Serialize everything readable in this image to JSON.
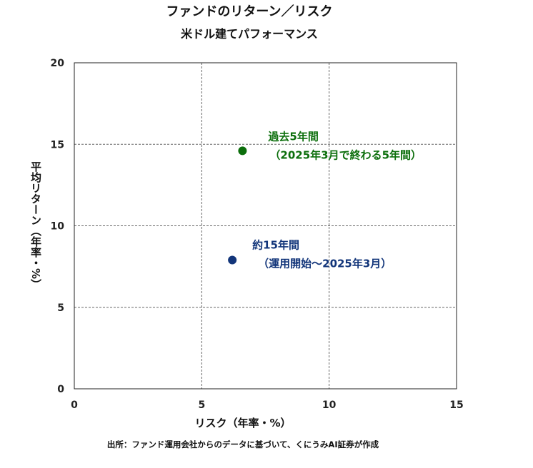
{
  "chart_data": {
    "type": "scatter",
    "title": "ファンドのリターン／リスク",
    "subtitle": "米ドル建てパフォーマンス",
    "xlabel": "リスク（年率・%）",
    "ylabel": "平均リターン（年率・%）",
    "xlim": [
      0,
      15
    ],
    "ylim": [
      0,
      20
    ],
    "xticks": [
      "0",
      "5",
      "10",
      "15"
    ],
    "yticks": [
      "0",
      "5",
      "10",
      "15",
      "20"
    ],
    "grid": true,
    "series": [
      {
        "x": 6.6,
        "y": 14.6,
        "color": "#0b6e0b",
        "annotation": [
          "過去5年間",
          "（2025年3月で終わる5年間）"
        ]
      },
      {
        "x": 6.2,
        "y": 7.9,
        "color": "#12357a",
        "annotation": [
          "約15年間",
          "（運用開始～2025年3月）"
        ]
      }
    ],
    "source": "出所：ファンド運用会社からのデータに基づいて、くにうみAI証券が作成"
  }
}
